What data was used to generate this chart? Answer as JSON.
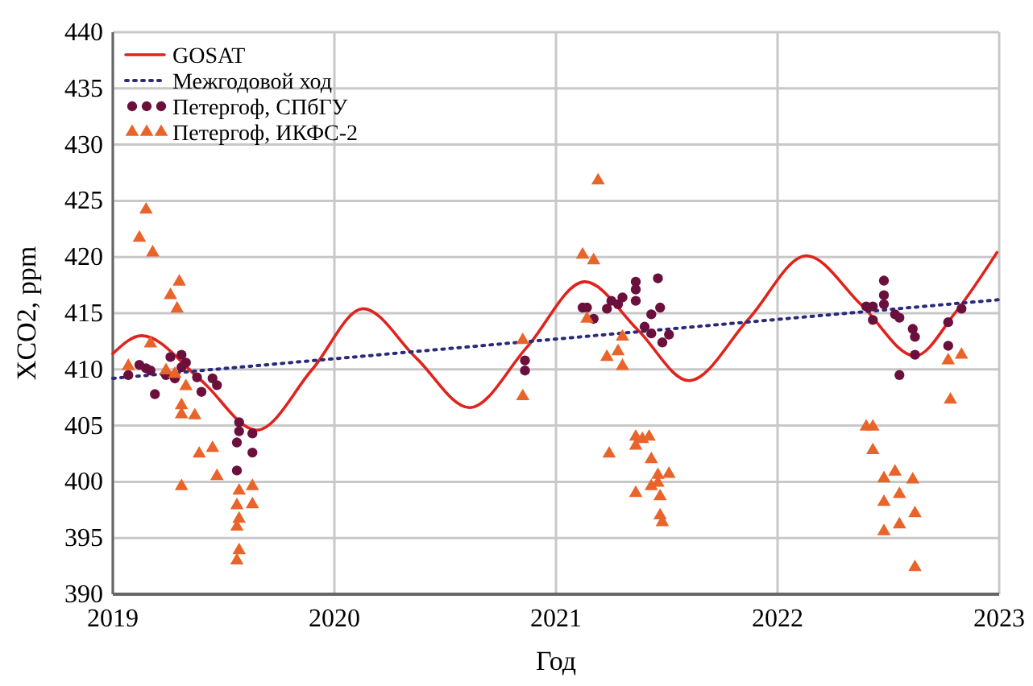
{
  "chart_data": {
    "type": "line",
    "xlabel": "Год",
    "ylabel": "XCO2, ppm",
    "xlim": [
      2019,
      2023
    ],
    "xticks": [
      2019,
      2020,
      2021,
      2022,
      2023
    ],
    "ylim": [
      390,
      440
    ],
    "yticks": [
      390,
      395,
      400,
      405,
      410,
      415,
      420,
      425,
      430,
      435,
      440
    ],
    "grid": true,
    "legend": "top left",
    "series": [
      {
        "name": "GOSAT",
        "color": "#e0231c",
        "line_style": "solid",
        "marker": "none",
        "x": [
          2019.0,
          2019.13,
          2019.4,
          2019.65,
          2019.9,
          2020.13,
          2020.37,
          2020.61,
          2020.87,
          2021.13,
          2021.37,
          2021.6,
          2021.87,
          2022.13,
          2022.38,
          2022.62,
          2022.8,
          2022.99
        ],
        "values": [
          411.4,
          413.0,
          409.0,
          404.6,
          410.0,
          415.4,
          411.0,
          406.6,
          412.0,
          417.8,
          413.5,
          409.0,
          414.5,
          420.1,
          415.7,
          411.2,
          415.0,
          420.4
        ]
      },
      {
        "name": "Межгодовой ход",
        "color": "#2b2a7a",
        "line_style": "dotted",
        "marker": "none",
        "x": [
          2019,
          2023
        ],
        "values": [
          409.2,
          416.2
        ]
      },
      {
        "name": "Петергоф, СПбГУ",
        "type": "scatter",
        "color": "#6b0f3c",
        "marker": "circle",
        "x": [
          2019.07,
          2019.12,
          2019.15,
          2019.17,
          2019.19,
          2019.24,
          2019.26,
          2019.28,
          2019.31,
          2019.31,
          2019.33,
          2019.38,
          2019.4,
          2019.45,
          2019.47,
          2019.57,
          2019.57,
          2019.56,
          2019.56,
          2019.63,
          2019.63,
          2020.86,
          2020.86,
          2021.12,
          2021.14,
          2021.17,
          2021.23,
          2021.25,
          2021.28,
          2021.3,
          2021.36,
          2021.36,
          2021.36,
          2021.46,
          2021.47,
          2021.4,
          2021.43,
          2021.43,
          2021.48,
          2021.51,
          2022.4,
          2022.43,
          2022.43,
          2022.48,
          2022.48,
          2022.48,
          2022.53,
          2022.55,
          2022.55,
          2022.61,
          2022.62,
          2022.62,
          2022.77,
          2022.77,
          2022.83
        ],
        "values": [
          409.5,
          410.4,
          410.1,
          409.9,
          407.8,
          409.5,
          411.1,
          409.2,
          411.3,
          410.2,
          410.6,
          409.3,
          408.0,
          409.2,
          408.6,
          405.3,
          404.5,
          403.5,
          401.0,
          404.3,
          402.6,
          410.8,
          409.9,
          415.5,
          415.5,
          414.5,
          415.4,
          416.1,
          415.8,
          416.4,
          417.8,
          417.1,
          416.1,
          418.1,
          415.5,
          413.8,
          413.2,
          414.9,
          412.4,
          413.1,
          415.6,
          415.6,
          414.4,
          417.9,
          416.6,
          415.8,
          414.9,
          414.6,
          409.5,
          413.6,
          412.9,
          411.3,
          414.2,
          412.1,
          415.4
        ]
      },
      {
        "name": "Петергоф, ИКФС-2",
        "type": "scatter",
        "color": "#e8642a",
        "marker": "triangle",
        "x": [
          2019.07,
          2019.15,
          2019.12,
          2019.18,
          2019.17,
          2019.26,
          2019.3,
          2019.29,
          2019.24,
          2019.28,
          2019.33,
          2019.31,
          2019.31,
          2019.37,
          2019.39,
          2019.45,
          2019.47,
          2019.31,
          2019.57,
          2019.63,
          2019.56,
          2019.63,
          2019.57,
          2019.56,
          2019.57,
          2019.56,
          2021.19,
          2021.12,
          2021.17,
          2021.14,
          2020.85,
          2020.85,
          2021.3,
          2021.28,
          2021.23,
          2021.3,
          2021.36,
          2021.36,
          2021.39,
          2021.42,
          2021.24,
          2021.43,
          2021.46,
          2021.51,
          2021.46,
          2021.43,
          2021.36,
          2021.47,
          2021.47,
          2021.48,
          2022.77,
          2022.83,
          2022.78,
          2022.4,
          2022.43,
          2022.43,
          2022.48,
          2022.53,
          2022.61,
          2022.48,
          2022.55,
          2022.62,
          2022.48,
          2022.55,
          2022.62
        ],
        "values": [
          410.3,
          424.2,
          421.7,
          420.4,
          412.3,
          416.6,
          417.8,
          415.4,
          409.9,
          409.6,
          408.5,
          406.8,
          406.0,
          405.9,
          402.5,
          403.0,
          400.5,
          399.6,
          399.2,
          399.6,
          397.9,
          398.0,
          396.7,
          396.0,
          393.9,
          393.0,
          426.8,
          420.2,
          419.7,
          414.5,
          412.6,
          407.6,
          412.9,
          411.6,
          411.1,
          410.3,
          404.0,
          403.2,
          403.8,
          404.0,
          402.5,
          402.0,
          400.6,
          400.7,
          399.9,
          399.6,
          399.0,
          398.7,
          397.0,
          396.4,
          410.8,
          411.3,
          407.3,
          404.9,
          404.9,
          402.8,
          400.3,
          400.9,
          400.2,
          398.2,
          398.9,
          397.2,
          395.6,
          396.2,
          392.4
        ]
      }
    ]
  }
}
